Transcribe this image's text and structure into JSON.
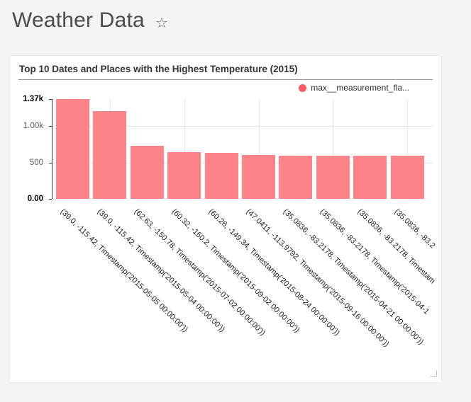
{
  "page": {
    "title": "Weather Data",
    "favorite_star": "☆"
  },
  "card": {
    "title": "Top 10 Dates and Places with the Highest Temperature (2015)"
  },
  "legend": {
    "label": "max__measurement_fla...",
    "color": "#fb5a60"
  },
  "chart_data": {
    "type": "bar",
    "title": "Top 10 Dates and Places with the Highest Temperature (2015)",
    "legend_entries": [
      "max__measurement_fla..."
    ],
    "series_color": "#fc8387",
    "categories": [
      "(39.0, -115.42, Timestamp('2015-05-05 00:00:00'))",
      "(39.0, -115.42, Timestamp('2015-05-04 00:00:00'))",
      "(62.63, -150.78, Timestamp('2015-07-02 00:00:00'))",
      "(60.32, -160.2, Timestamp('2015-09-02 00:00:00'))",
      "(60.26, -149.34, Timestamp('2015-08-24 00:00:00'))",
      "(47.0411, -113.9792, Timestamp('2015-09-16 00:00:00'))",
      "(35.0836, -83.2178, Timestamp('2015-04-21 00:00:00'))",
      "(35.0836, -83.2178, Timestamp('2015-04-1",
      "(35.0836, -83.2178, Timestam",
      "(35.0836, -83.2"
    ],
    "values": [
      1370,
      1200,
      730,
      640,
      635,
      600,
      593,
      593,
      593,
      593
    ],
    "ylim": [
      0,
      1370
    ],
    "yticks": [
      {
        "label": "1.37k",
        "value": 1370,
        "bold": true
      },
      {
        "label": "1.00k",
        "value": 1000,
        "bold": false
      },
      {
        "label": "500",
        "value": 500,
        "bold": false
      },
      {
        "label": "0.00",
        "value": 0,
        "bold": true
      }
    ],
    "grid_values": [
      1000,
      500
    ],
    "x_tick_rotation_deg": 44,
    "xlabel": "",
    "ylabel": "",
    "legend_position": "top-right",
    "grid": true
  }
}
